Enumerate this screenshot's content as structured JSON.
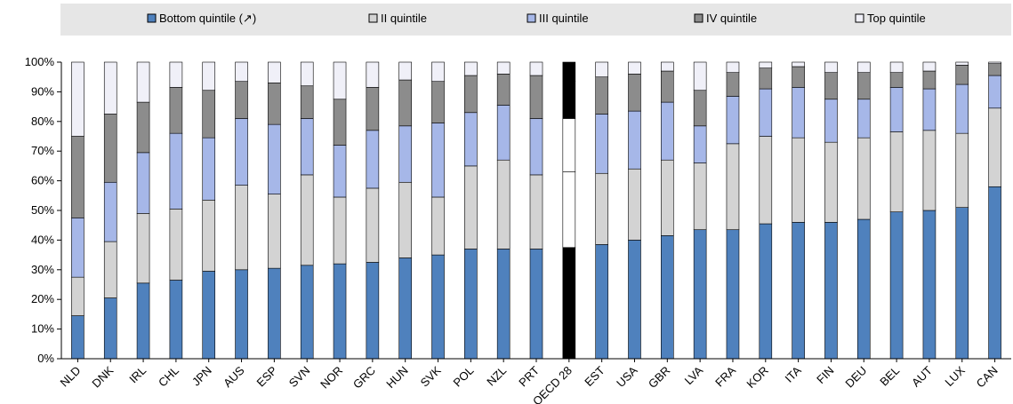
{
  "chart_data": {
    "type": "bar",
    "stacked": true,
    "legend_position": "top",
    "grid": false,
    "ylim": [
      0,
      100
    ],
    "y_ticks": [
      "0%",
      "10%",
      "20%",
      "30%",
      "40%",
      "50%",
      "60%",
      "70%",
      "80%",
      "90%",
      "100%"
    ],
    "categories": [
      "NLD",
      "DNK",
      "IRL",
      "CHL",
      "JPN",
      "AUS",
      "ESP",
      "SVN",
      "NOR",
      "GRC",
      "HUN",
      "SVK",
      "POL",
      "NZL",
      "PRT",
      "OECD 28",
      "EST",
      "USA",
      "GBR",
      "LVA",
      "FRA",
      "KOR",
      "ITA",
      "FIN",
      "DEU",
      "BEL",
      "AUT",
      "LUX",
      "CAN"
    ],
    "highlight_category": "OECD 28",
    "series": [
      {
        "name": "Bottom quintile (↗)",
        "color": "#4f81bd",
        "highlight_color": "#000000",
        "values": [
          14.5,
          20.5,
          25.5,
          26.5,
          29.5,
          30.0,
          30.5,
          31.5,
          32.0,
          32.5,
          34.0,
          35.0,
          37.0,
          37.0,
          37.0,
          37.5,
          38.5,
          40.0,
          41.5,
          43.5,
          43.5,
          45.5,
          46.0,
          46.0,
          47.0,
          49.5,
          50.0,
          51.0,
          58.0
        ]
      },
      {
        "name": "II quintile",
        "color": "#d3d3d3",
        "highlight_color": "#ffffff",
        "values": [
          13.0,
          19.0,
          23.5,
          24.0,
          24.0,
          28.5,
          25.0,
          30.5,
          22.5,
          25.0,
          25.5,
          19.5,
          28.0,
          30.0,
          25.0,
          25.5,
          24.0,
          24.0,
          25.5,
          22.5,
          29.0,
          29.5,
          28.5,
          27.0,
          27.5,
          27.0,
          27.0,
          25.0,
          26.5
        ]
      },
      {
        "name": "III quintile",
        "color": "#a6b7e8",
        "highlight_color": "#ffffff",
        "values": [
          20.0,
          20.0,
          20.5,
          25.5,
          21.0,
          22.5,
          23.5,
          19.0,
          17.5,
          19.5,
          19.0,
          25.0,
          18.0,
          18.5,
          19.0,
          18.0,
          20.0,
          19.5,
          19.5,
          12.5,
          16.0,
          16.0,
          17.0,
          14.5,
          13.0,
          15.0,
          14.0,
          16.5,
          11.0
        ]
      },
      {
        "name": "IV quintile",
        "color": "#8c8c8c",
        "highlight_color": "#000000",
        "values": [
          27.5,
          23.0,
          17.0,
          15.5,
          16.0,
          12.5,
          14.0,
          11.0,
          15.5,
          14.5,
          15.5,
          14.0,
          12.5,
          10.5,
          14.5,
          12.5,
          12.5,
          12.5,
          10.5,
          12.0,
          8.0,
          7.0,
          7.0,
          9.0,
          9.0,
          5.0,
          6.0,
          6.5,
          4.0
        ]
      },
      {
        "name": "Top quintile",
        "color": "#f0f0f8",
        "highlight_color": "#000000",
        "values": [
          25.0,
          17.5,
          13.5,
          8.5,
          9.5,
          6.5,
          7.0,
          8.0,
          12.5,
          8.5,
          6.0,
          6.5,
          4.5,
          4.0,
          4.5,
          6.5,
          5.0,
          4.0,
          3.0,
          9.5,
          3.5,
          2.0,
          1.5,
          3.5,
          3.5,
          3.5,
          3.0,
          1.0,
          0.5
        ]
      }
    ]
  }
}
